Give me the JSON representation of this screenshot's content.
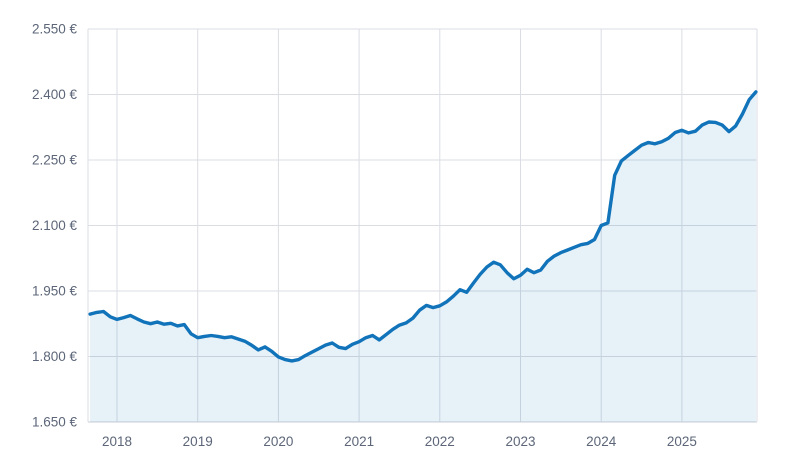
{
  "chart_data": {
    "type": "area",
    "title": "",
    "xlabel": "",
    "ylabel": "",
    "unit": "€",
    "ylim": [
      1.65,
      2.55
    ],
    "x": [
      "2017-09",
      "2017-10",
      "2017-11",
      "2017-12",
      "2018-01",
      "2018-02",
      "2018-03",
      "2018-04",
      "2018-05",
      "2018-06",
      "2018-07",
      "2018-08",
      "2018-09",
      "2018-10",
      "2018-11",
      "2018-12",
      "2019-01",
      "2019-02",
      "2019-03",
      "2019-04",
      "2019-05",
      "2019-06",
      "2019-07",
      "2019-08",
      "2019-09",
      "2019-10",
      "2019-11",
      "2019-12",
      "2020-01",
      "2020-02",
      "2020-03",
      "2020-04",
      "2020-05",
      "2020-06",
      "2020-07",
      "2020-08",
      "2020-09",
      "2020-10",
      "2020-11",
      "2020-12",
      "2021-01",
      "2021-02",
      "2021-03",
      "2021-04",
      "2021-05",
      "2021-06",
      "2021-07",
      "2021-08",
      "2021-09",
      "2021-10",
      "2021-11",
      "2021-12",
      "2022-01",
      "2022-02",
      "2022-03",
      "2022-04",
      "2022-05",
      "2022-06",
      "2022-07",
      "2022-08",
      "2022-09",
      "2022-10",
      "2022-11",
      "2022-12",
      "2023-01",
      "2023-02",
      "2023-03",
      "2023-04",
      "2023-05",
      "2023-06",
      "2023-07",
      "2023-08",
      "2023-09",
      "2023-10",
      "2023-11",
      "2023-12",
      "2024-01",
      "2024-02",
      "2024-03",
      "2024-04",
      "2024-05",
      "2024-06",
      "2024-07",
      "2024-08",
      "2024-09",
      "2024-10",
      "2024-11",
      "2024-12",
      "2025-01",
      "2025-02",
      "2025-03",
      "2025-04",
      "2025-05",
      "2025-06",
      "2025-07",
      "2025-08",
      "2025-09",
      "2025-10",
      "2025-11",
      "2025-12"
    ],
    "values": [
      1.897,
      1.901,
      1.903,
      1.891,
      1.885,
      1.889,
      1.894,
      1.886,
      1.879,
      1.875,
      1.879,
      1.874,
      1.876,
      1.87,
      1.873,
      1.852,
      1.843,
      1.846,
      1.848,
      1.846,
      1.843,
      1.845,
      1.84,
      1.835,
      1.826,
      1.815,
      1.822,
      1.812,
      1.799,
      1.793,
      1.79,
      1.793,
      1.802,
      1.81,
      1.818,
      1.826,
      1.831,
      1.821,
      1.818,
      1.828,
      1.834,
      1.843,
      1.848,
      1.838,
      1.85,
      1.862,
      1.872,
      1.877,
      1.888,
      1.906,
      1.917,
      1.912,
      1.916,
      1.925,
      1.938,
      1.953,
      1.947,
      1.968,
      1.988,
      2.005,
      2.016,
      2.01,
      1.992,
      1.978,
      1.986,
      2.0,
      1.992,
      1.998,
      2.018,
      2.03,
      2.038,
      2.044,
      2.05,
      2.056,
      2.059,
      2.068,
      2.1,
      2.106,
      2.215,
      2.248,
      2.26,
      2.272,
      2.284,
      2.29,
      2.287,
      2.292,
      2.3,
      2.313,
      2.318,
      2.312,
      2.316,
      2.33,
      2.337,
      2.336,
      2.33,
      2.315,
      2.328,
      2.355,
      2.388,
      2.406
    ],
    "grid": true,
    "legend": false
  },
  "axes": {
    "y_ticks": [
      "2.550 €",
      "2.400 €",
      "2.250 €",
      "2.100 €",
      "1.950 €",
      "1.800 €",
      "1.650 €"
    ],
    "y_tick_values": [
      2.55,
      2.4,
      2.25,
      2.1,
      1.95,
      1.8,
      1.65
    ],
    "x_ticks": [
      "2018",
      "2019",
      "2020",
      "2021",
      "2022",
      "2023",
      "2024",
      "2025"
    ]
  },
  "colors": {
    "line": "#1173b9",
    "area_fill": "rgba(17,115,185,0.10)",
    "grid": "#dadde3",
    "axis_line": "#c9ced6",
    "label": "#5c6678",
    "background": "#ffffff"
  }
}
